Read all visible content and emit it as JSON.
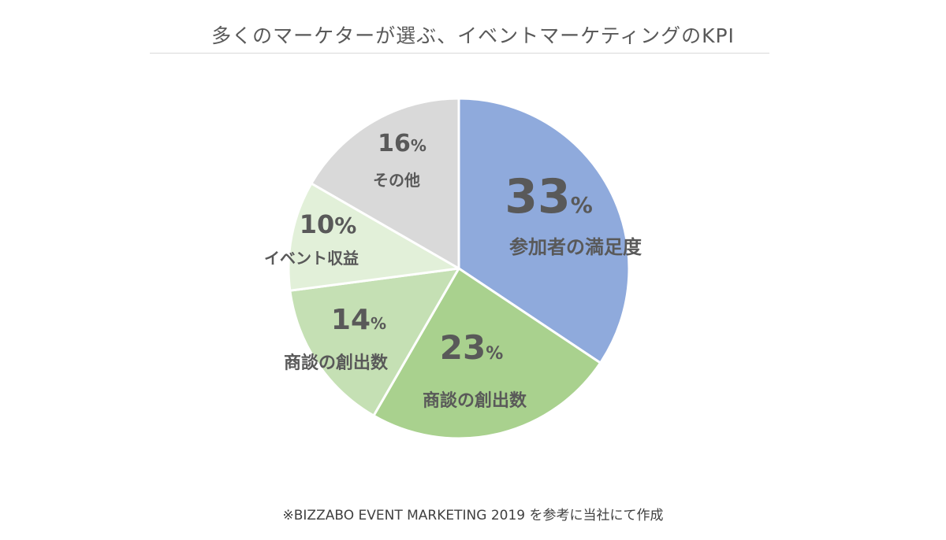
{
  "chart_data": {
    "type": "pie",
    "title": "多くのマーケターが選ぶ、イベントマーケティングのKPI",
    "value_suffix": "%",
    "slices": [
      {
        "label": "参加者の満足度",
        "value": 33,
        "color": "#8faadc"
      },
      {
        "label": "商談の創出数",
        "value": 23,
        "color": "#a9d18e"
      },
      {
        "label": "商談の創出数",
        "value": 14,
        "color": "#c5e0b4"
      },
      {
        "label": "イベント収益",
        "value": 10,
        "color": "#e2f0d9"
      },
      {
        "label": "その他",
        "value": 16,
        "color": "#d9d9d9"
      }
    ]
  },
  "footnote": "※BIZZABO EVENT MARKETING 2019 を参考に当社にて作成"
}
